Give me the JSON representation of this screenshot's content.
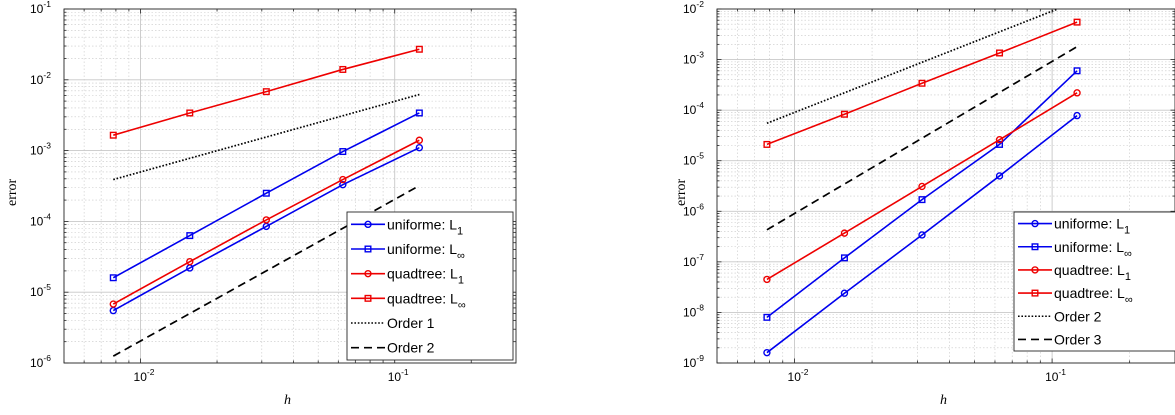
{
  "chart_data": [
    {
      "type": "line",
      "xscale": "log",
      "yscale": "log",
      "xlim": [
        0.005,
        0.3
      ],
      "ylim": [
        1e-06,
        0.1
      ],
      "grid": true,
      "xlabel": "h",
      "ylabel": "error",
      "xticks": [
        {
          "value": 0.01,
          "base": "10",
          "exp": "-2"
        },
        {
          "value": 0.1,
          "base": "10",
          "exp": "-1"
        }
      ],
      "yticks": [
        {
          "value": 1e-06,
          "base": "10",
          "exp": "-6"
        },
        {
          "value": 1e-05,
          "base": "10",
          "exp": "-5"
        },
        {
          "value": 0.0001,
          "base": "10",
          "exp": "-4"
        },
        {
          "value": 0.001,
          "base": "10",
          "exp": "-3"
        },
        {
          "value": 0.01,
          "base": "10",
          "exp": "-2"
        },
        {
          "value": 0.1,
          "base": "10",
          "exp": "-1"
        }
      ],
      "legend_position": "bottom-right",
      "series": [
        {
          "label": "uniforme: L",
          "sub": "1",
          "color": "#0000ee",
          "marker": "circle",
          "dash": "solid",
          "x": [
            0.0078125,
            0.015625,
            0.03125,
            0.0625,
            0.125
          ],
          "y": [
            5.5e-06,
            2.2e-05,
            8.5e-05,
            0.00033,
            0.0011
          ]
        },
        {
          "label": "uniforme: L",
          "sub": "∞",
          "color": "#0000ee",
          "marker": "square",
          "dash": "solid",
          "x": [
            0.0078125,
            0.015625,
            0.03125,
            0.0625,
            0.125
          ],
          "y": [
            1.6e-05,
            6.3e-05,
            0.00025,
            0.00097,
            0.0034
          ]
        },
        {
          "label": "quadtree: L",
          "sub": "1",
          "color": "#ee0000",
          "marker": "circle",
          "dash": "solid",
          "x": [
            0.0078125,
            0.015625,
            0.03125,
            0.0625,
            0.125
          ],
          "y": [
            6.8e-06,
            2.7e-05,
            0.000105,
            0.00039,
            0.0014
          ]
        },
        {
          "label": "quadtree: L",
          "sub": "∞",
          "color": "#ee0000",
          "marker": "square",
          "dash": "solid",
          "x": [
            0.0078125,
            0.015625,
            0.03125,
            0.0625,
            0.125
          ],
          "y": [
            0.00165,
            0.0034,
            0.0068,
            0.014,
            0.027
          ]
        },
        {
          "label": "Order 1",
          "sub": "",
          "color": "#000000",
          "marker": "none",
          "dash": "dotted",
          "x": [
            0.0078125,
            0.125
          ],
          "y": [
            0.00039,
            0.0062
          ]
        },
        {
          "label": "Order 2",
          "sub": "",
          "color": "#000000",
          "marker": "none",
          "dash": "dashed",
          "x": [
            0.0078125,
            0.125
          ],
          "y": [
            1.25e-06,
            0.00032
          ]
        }
      ]
    },
    {
      "type": "line",
      "xscale": "log",
      "yscale": "log",
      "xlim": [
        0.005,
        0.3
      ],
      "ylim": [
        1e-09,
        0.01
      ],
      "grid": true,
      "xlabel": "h",
      "ylabel": "error",
      "xticks": [
        {
          "value": 0.01,
          "base": "10",
          "exp": "-2"
        },
        {
          "value": 0.1,
          "base": "10",
          "exp": "-1"
        }
      ],
      "yticks": [
        {
          "value": 1e-09,
          "base": "10",
          "exp": "-9"
        },
        {
          "value": 1e-08,
          "base": "10",
          "exp": "-8"
        },
        {
          "value": 1e-07,
          "base": "10",
          "exp": "-7"
        },
        {
          "value": 1e-06,
          "base": "10",
          "exp": "-6"
        },
        {
          "value": 1e-05,
          "base": "10",
          "exp": "-5"
        },
        {
          "value": 0.0001,
          "base": "10",
          "exp": "-4"
        },
        {
          "value": 0.001,
          "base": "10",
          "exp": "-3"
        },
        {
          "value": 0.01,
          "base": "10",
          "exp": "-2"
        }
      ],
      "legend_position": "bottom-right",
      "series": [
        {
          "label": "uniforme: L",
          "sub": "1",
          "color": "#0000ee",
          "marker": "circle",
          "dash": "solid",
          "x": [
            0.0078125,
            0.015625,
            0.03125,
            0.0625,
            0.125
          ],
          "y": [
            1.6e-09,
            2.4e-08,
            3.4e-07,
            5e-06,
            7.8e-05
          ]
        },
        {
          "label": "uniforme: L",
          "sub": "∞",
          "color": "#0000ee",
          "marker": "square",
          "dash": "solid",
          "x": [
            0.0078125,
            0.015625,
            0.03125,
            0.0625,
            0.125
          ],
          "y": [
            8e-09,
            1.2e-07,
            1.7e-06,
            2.1e-05,
            0.0006
          ]
        },
        {
          "label": "quadtree: L",
          "sub": "1",
          "color": "#ee0000",
          "marker": "circle",
          "dash": "solid",
          "x": [
            0.0078125,
            0.015625,
            0.03125,
            0.0625,
            0.125
          ],
          "y": [
            4.5e-08,
            3.7e-07,
            3.1e-06,
            2.6e-05,
            0.00022
          ]
        },
        {
          "label": "quadtree: L",
          "sub": "∞",
          "color": "#ee0000",
          "marker": "square",
          "dash": "solid",
          "x": [
            0.0078125,
            0.015625,
            0.03125,
            0.0625,
            0.125
          ],
          "y": [
            2.1e-05,
            8.3e-05,
            0.00034,
            0.00135,
            0.0055
          ]
        },
        {
          "label": "Order 2",
          "sub": "",
          "color": "#000000",
          "marker": "none",
          "dash": "dotted",
          "x": [
            0.0078125,
            0.105
          ],
          "y": [
            5.5e-05,
            0.01
          ]
        },
        {
          "label": "Order 3",
          "sub": "",
          "color": "#000000",
          "marker": "none",
          "dash": "dashed",
          "x": [
            0.0078125,
            0.125
          ],
          "y": [
            4.3e-07,
            0.0018
          ]
        }
      ]
    }
  ]
}
